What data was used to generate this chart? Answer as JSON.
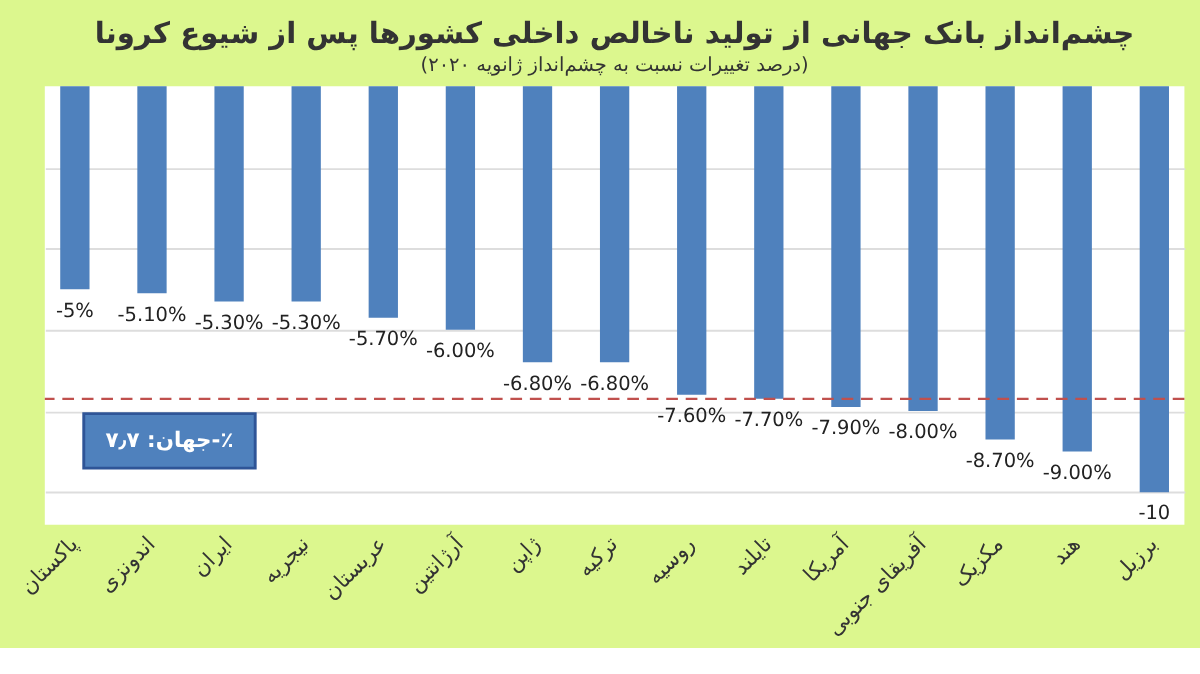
{
  "chart_data": {
    "type": "bar",
    "title": "چشم‌انداز بانک جهانی از تولید ناخالص داخلی کشورها پس از شیوع کرونا",
    "subtitle": "(درصد تغییرات نسبت به چشم‌انداز ژانویه ۲۰۲۰)",
    "categories": [
      "پاکستان",
      "اندونزی",
      "ایران",
      "نیجریه",
      "عربستان",
      "آرژانتین",
      "ژاپن",
      "ترکیه",
      "روسیه",
      "تایلند",
      "آمریکا",
      "آفریقای جنوبی",
      "مکزیک",
      "هند",
      "برزیل"
    ],
    "values": [
      -5,
      -5.1,
      -5.3,
      -5.3,
      -5.7,
      -6.0,
      -6.8,
      -6.8,
      -7.6,
      -7.7,
      -7.9,
      -8.0,
      -8.7,
      -9.0,
      -10
    ],
    "value_labels": [
      "-5%",
      "-5.10%",
      "-5.30%",
      "-5.30%",
      "-5.70%",
      "-6.00%",
      "-6.80%",
      "-6.80%",
      "-7.60%",
      "-7.70%",
      "-7.90%",
      "-8.00%",
      "-8.70%",
      "-9.00%",
      "-10"
    ],
    "color": "#4f81bd",
    "ylim": [
      -10.8,
      0
    ],
    "yticks": [
      {
        "value": -2,
        "label": null
      },
      {
        "value": -4,
        "label": null
      },
      {
        "value": -6,
        "label": null
      },
      {
        "value": -8,
        "label": null
      },
      {
        "value": -10,
        "label": null
      }
    ],
    "grid": "y",
    "tick_labels": "x",
    "ref_lines": [
      {
        "axis": "y",
        "value": -7.7,
        "color": "#c0504d",
        "line_style": "dashed"
      }
    ],
    "annotations": [
      "جهان: ۷٫۷-٪"
    ]
  }
}
